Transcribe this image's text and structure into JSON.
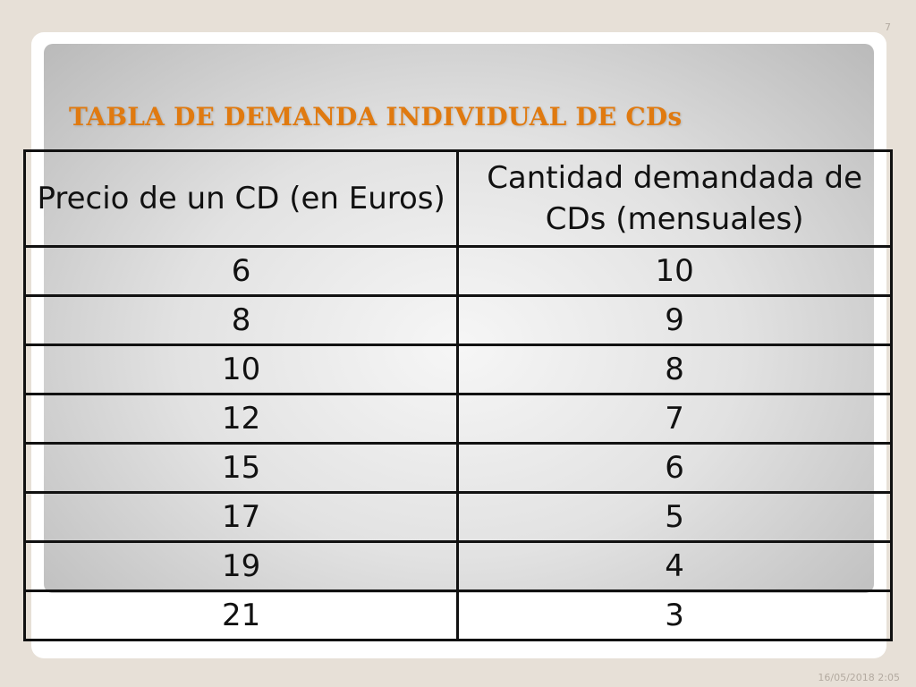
{
  "slide_number": "7",
  "title": "TABLA DE DEMANDA INDIVIDUAL DE CDs",
  "table": {
    "headers": [
      "Precio de un CD (en Euros)",
      "Cantidad demandada de CDs (mensuales)"
    ],
    "rows": [
      [
        "6",
        "10"
      ],
      [
        "8",
        "9"
      ],
      [
        "10",
        "8"
      ],
      [
        "12",
        "7"
      ],
      [
        "15",
        "6"
      ],
      [
        "17",
        "5"
      ],
      [
        "19",
        "4"
      ],
      [
        "21",
        "3"
      ]
    ]
  },
  "footer": {
    "date": "16/05/2018 2:05"
  },
  "colors": {
    "title": "#e07a10",
    "background": "#e7e0d7",
    "border": "#111111"
  }
}
